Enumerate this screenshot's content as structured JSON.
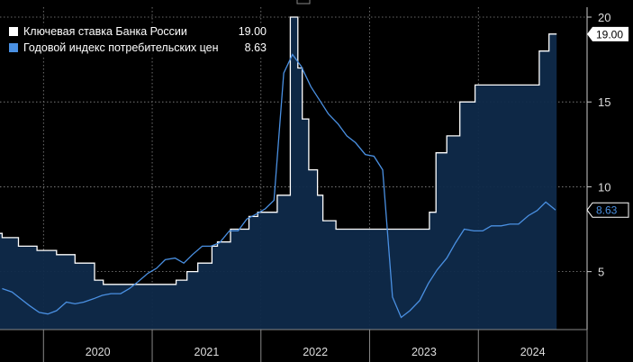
{
  "chart_data": {
    "type": "line",
    "title": "",
    "xlabel": "",
    "ylabel": "",
    "x_range": [
      2019.6,
      2025.0
    ],
    "ylim": [
      1.0,
      20.0
    ],
    "y_ticks": [
      5,
      10,
      15,
      20
    ],
    "x_tick_years": [
      "2020",
      "2021",
      "2022",
      "2023",
      "2024"
    ],
    "grid": true,
    "legend_position": "top-left",
    "series": [
      {
        "name": "Ключевая ставка Банка России",
        "style": "step",
        "color": "#ffffff",
        "last_value_label": "19.00",
        "x": [
          2019.6,
          2019.62,
          2019.77,
          2019.94,
          2020.12,
          2020.29,
          2020.47,
          2020.55,
          2021.22,
          2021.32,
          2021.42,
          2021.55,
          2021.6,
          2021.72,
          2021.89,
          2021.97,
          2022.15,
          2022.27,
          2022.34,
          2022.38,
          2022.44,
          2022.52,
          2022.57,
          2022.69,
          2023.2,
          2023.55,
          2023.61,
          2023.71,
          2023.83,
          2023.97,
          2024.56,
          2024.65,
          2024.72
        ],
        "y": [
          7.25,
          7.0,
          6.5,
          6.25,
          6.0,
          5.5,
          4.5,
          4.25,
          4.5,
          5.0,
          5.5,
          6.5,
          6.75,
          7.5,
          8.25,
          8.5,
          9.5,
          20.0,
          17.0,
          14.0,
          11.0,
          9.5,
          8.0,
          7.5,
          7.5,
          8.5,
          12.0,
          13.0,
          15.0,
          16.0,
          18.0,
          19.0,
          19.0
        ]
      },
      {
        "name": "Годовой индекс потребительских цен",
        "style": "line",
        "color": "#4a90e2",
        "last_value_label": "8.63",
        "x": [
          2019.62,
          2019.71,
          2019.79,
          2019.87,
          2019.96,
          2020.04,
          2020.12,
          2020.21,
          2020.29,
          2020.37,
          2020.46,
          2020.54,
          2020.62,
          2020.71,
          2020.79,
          2020.87,
          2020.96,
          2021.04,
          2021.12,
          2021.21,
          2021.29,
          2021.37,
          2021.46,
          2021.54,
          2021.62,
          2021.71,
          2021.79,
          2021.87,
          2021.96,
          2022.04,
          2022.12,
          2022.21,
          2022.29,
          2022.37,
          2022.46,
          2022.54,
          2022.62,
          2022.71,
          2022.79,
          2022.87,
          2022.96,
          2023.04,
          2023.12,
          2023.21,
          2023.29,
          2023.37,
          2023.46,
          2023.54,
          2023.62,
          2023.71,
          2023.79,
          2023.87,
          2023.96,
          2024.04,
          2024.12,
          2024.21,
          2024.29,
          2024.37,
          2024.46,
          2024.54,
          2024.62,
          2024.71
        ],
        "y": [
          4.0,
          3.8,
          3.4,
          3.0,
          2.6,
          2.5,
          2.7,
          3.2,
          3.1,
          3.2,
          3.4,
          3.6,
          3.7,
          3.7,
          4.0,
          4.4,
          4.9,
          5.2,
          5.7,
          5.8,
          5.5,
          6.0,
          6.5,
          6.5,
          6.7,
          7.4,
          7.4,
          8.1,
          8.4,
          8.7,
          9.2,
          16.7,
          17.8,
          17.1,
          15.9,
          15.1,
          14.3,
          13.7,
          13.0,
          12.6,
          11.9,
          11.8,
          11.0,
          3.5,
          2.3,
          2.7,
          3.3,
          4.3,
          5.1,
          5.8,
          6.7,
          7.5,
          7.4,
          7.4,
          7.7,
          7.7,
          7.8,
          7.8,
          8.3,
          8.6,
          9.1,
          8.63
        ]
      }
    ]
  }
}
